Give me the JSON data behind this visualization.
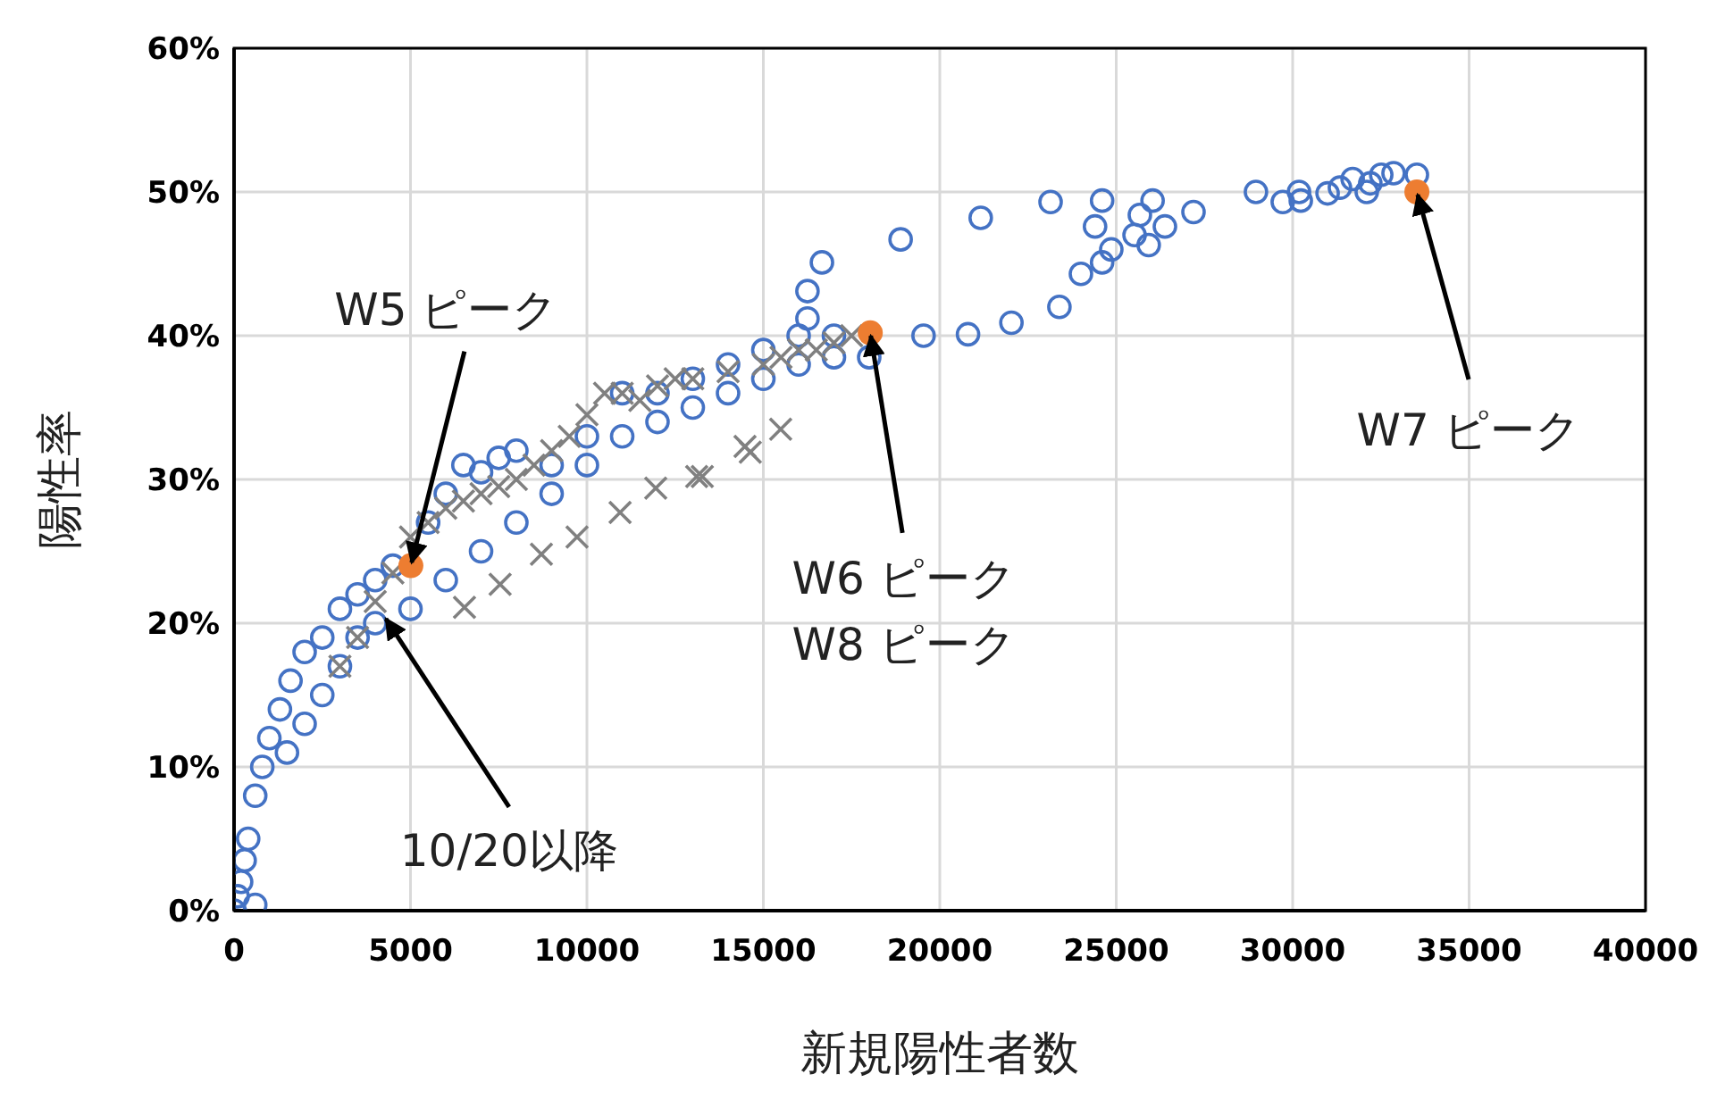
{
  "chart_data": {
    "type": "scatter",
    "xlabel": "新規陽性者数",
    "ylabel": "陽性率",
    "xlim": [
      0,
      40000
    ],
    "xticks": [
      0,
      5000,
      10000,
      15000,
      20000,
      25000,
      30000,
      35000,
      40000
    ],
    "ylim": [
      0,
      0.6
    ],
    "yticks": [
      {
        "value": 0,
        "label": "0%"
      },
      {
        "value": 0.1,
        "label": "10%"
      },
      {
        "value": 0.2,
        "label": "20%"
      },
      {
        "value": 0.3,
        "label": "30%"
      },
      {
        "value": 0.4,
        "label": "40%"
      },
      {
        "value": 0.5,
        "label": "50%"
      },
      {
        "value": 0.6,
        "label": "60%"
      }
    ],
    "grid": true,
    "series": [
      {
        "color": "#4472c4",
        "marker": "circle",
        "x": [
          0,
          100,
          200,
          300,
          400,
          600,
          800,
          1000,
          1300,
          1600,
          2000,
          2500,
          3000,
          3500,
          4000,
          4500,
          600,
          1500,
          2000,
          2500,
          3000,
          3500,
          4000,
          5000,
          6000,
          7000,
          8000,
          9000,
          10000,
          11000,
          12000,
          13000,
          14000,
          15000,
          16000,
          17000,
          18000,
          5500,
          6000,
          6500,
          7000,
          7500,
          8000,
          9000,
          10000,
          11000,
          12000,
          13000,
          14000,
          15000,
          16000,
          17000,
          16250,
          16660,
          18890,
          16250,
          19540,
          20800,
          22030,
          23390,
          24000,
          24600,
          24860,
          25520,
          25920,
          26380,
          24400,
          25670,
          26030,
          27190,
          24600,
          23140,
          21160,
          28960,
          29720,
          30230,
          30180,
          30990,
          31340,
          31700,
          32200,
          32510,
          32860,
          33520,
          32100
        ],
        "values": [
          0,
          0.01,
          0.02,
          0.035,
          0.05,
          0.08,
          0.1,
          0.12,
          0.14,
          0.16,
          0.18,
          0.19,
          0.21,
          0.22,
          0.23,
          0.24,
          0.004,
          0.11,
          0.13,
          0.15,
          0.17,
          0.19,
          0.2,
          0.21,
          0.23,
          0.25,
          0.27,
          0.29,
          0.31,
          0.33,
          0.34,
          0.35,
          0.36,
          0.37,
          0.38,
          0.385,
          0.385,
          0.27,
          0.29,
          0.31,
          0.305,
          0.315,
          0.32,
          0.31,
          0.33,
          0.36,
          0.36,
          0.37,
          0.38,
          0.39,
          0.4,
          0.4,
          0.431,
          0.451,
          0.467,
          0.412,
          0.4,
          0.401,
          0.409,
          0.42,
          0.443,
          0.451,
          0.46,
          0.47,
          0.463,
          0.476,
          0.476,
          0.484,
          0.494,
          0.486,
          0.494,
          0.493,
          0.482,
          0.5,
          0.493,
          0.494,
          0.5,
          0.499,
          0.503,
          0.509,
          0.506,
          0.512,
          0.513,
          0.512,
          0.5
        ]
      },
      {
        "color": "#808080",
        "marker": "cross",
        "x": [
          3000,
          3500,
          4000,
          4500,
          5000,
          5500,
          6000,
          6500,
          7000,
          7500,
          8000,
          8500,
          9000,
          9500,
          10000,
          10500,
          11000,
          11500,
          12000,
          12500,
          13000,
          14000,
          15000,
          15500,
          16000,
          16500,
          17000,
          17500,
          6530,
          7540,
          8710,
          9720,
          10940,
          11950,
          13270,
          14480,
          15490,
          14630,
          13110
        ],
        "values": [
          0.17,
          0.19,
          0.215,
          0.235,
          0.26,
          0.27,
          0.28,
          0.285,
          0.29,
          0.295,
          0.3,
          0.31,
          0.32,
          0.33,
          0.345,
          0.36,
          0.36,
          0.355,
          0.365,
          0.37,
          0.37,
          0.375,
          0.38,
          0.385,
          0.39,
          0.39,
          0.395,
          0.4,
          0.211,
          0.227,
          0.248,
          0.26,
          0.277,
          0.294,
          0.302,
          0.323,
          0.335,
          0.319,
          0.302
        ]
      },
      {
        "color": "#ed7d31",
        "marker": "circle",
        "x": [
          5010,
          18030,
          33520
        ],
        "values": [
          0.24,
          0.402,
          0.5
        ]
      }
    ],
    "annotations": [
      {
        "text": "W5 ピーク",
        "x": 5010,
        "y": 0.24
      },
      {
        "text": "W6 ピーク\nW8 ピーク",
        "x": 18030,
        "y": 0.402
      },
      {
        "text": "W7 ピーク",
        "x": 33520,
        "y": 0.5
      },
      {
        "text": "10/20以降",
        "x": 4250,
        "y": 0.205
      }
    ]
  }
}
